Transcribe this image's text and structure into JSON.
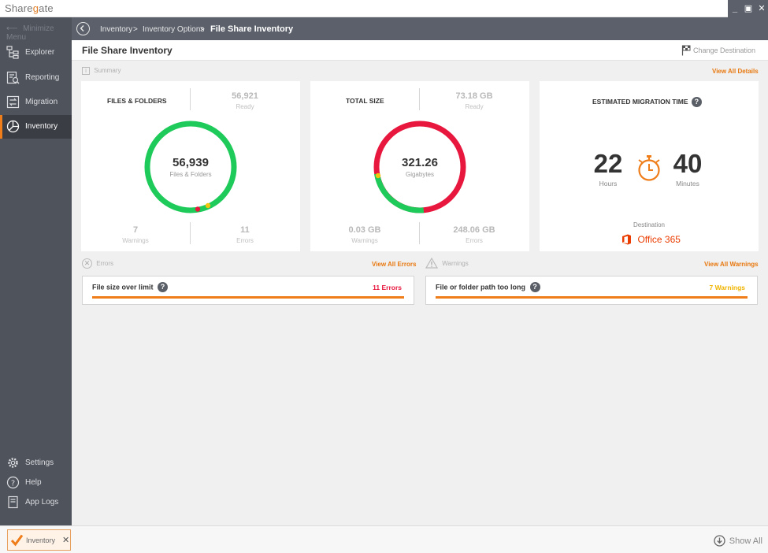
{
  "app": {
    "logo_pre": "Share",
    "logo_g": "g",
    "logo_post": "ate",
    "win_minimize": "_",
    "win_maximize": "▣",
    "win_close": "✕"
  },
  "sidebar": {
    "minimize_label": "Minimize Menu",
    "items": [
      {
        "label": "Explorer",
        "icon": "explorer-icon"
      },
      {
        "label": "Reporting",
        "icon": "reporting-icon"
      },
      {
        "label": "Migration",
        "icon": "migration-icon"
      },
      {
        "label": "Inventory",
        "icon": "inventory-icon"
      }
    ],
    "bottom_items": [
      {
        "label": "Settings",
        "icon": "gear-icon"
      },
      {
        "label": "Help",
        "icon": "help-icon"
      },
      {
        "label": "App Logs",
        "icon": "logs-icon"
      }
    ]
  },
  "breadcrumb": {
    "items": [
      "Inventory",
      "Inventory Options",
      "File Share Inventory"
    ],
    "separator": ">"
  },
  "page": {
    "title": "File Share Inventory",
    "change_destination": "Change Destination"
  },
  "summary": {
    "label": "Summary",
    "view_all": "View All Details"
  },
  "files_card": {
    "heading": "FILES & FOLDERS",
    "total": "56,939",
    "total_label": "Files & Folders",
    "ready": "56,921",
    "ready_label": "Ready",
    "warnings": "7",
    "warnings_label": "Warnings",
    "errors": "11",
    "errors_label": "Errors",
    "colors": {
      "ready": "#1ecb5a",
      "error": "#e8173e",
      "warning": "#f2c40f"
    }
  },
  "size_card": {
    "heading": "TOTAL SIZE",
    "total": "321.26",
    "total_label": "Gigabytes",
    "ready": "73.18 GB",
    "ready_label": "Ready",
    "warnings": "0.03 GB",
    "warnings_label": "Warnings",
    "errors": "248.06 GB",
    "errors_label": "Errors",
    "colors": {
      "ready": "#1ecb5a",
      "error": "#e8173e",
      "warning": "#f2c40f"
    }
  },
  "time_card": {
    "heading": "ESTIMATED MIGRATION TIME",
    "hours": "22",
    "hours_label": "Hours",
    "minutes": "40",
    "minutes_label": "Minutes",
    "destination_label": "Destination",
    "destination": "Office 365",
    "accent": "#ee7d1a"
  },
  "errors": {
    "label": "Errors",
    "view_all": "View All Errors",
    "item_title": "File size over limit",
    "item_count": "11 Errors",
    "count_color": "#e8173e"
  },
  "warnings": {
    "label": "Warnings",
    "view_all": "View All Warnings",
    "item_title": "File or folder path too long",
    "item_count": "7 Warnings",
    "count_color": "#f0b400"
  },
  "footer": {
    "task_label": "Inventory",
    "task_close": "✕",
    "show_all": "Show All"
  }
}
